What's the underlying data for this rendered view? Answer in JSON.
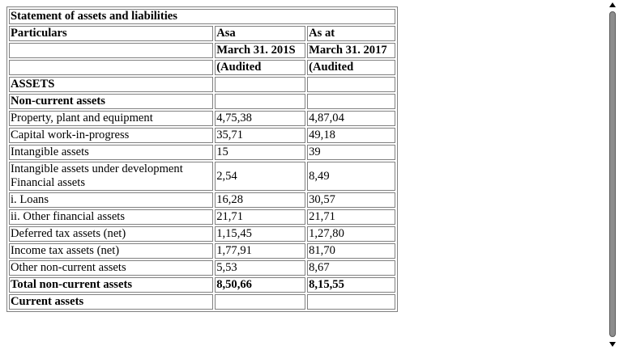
{
  "document": {
    "title": "Statement of assets and liabilities",
    "header_rows": [
      [
        "Particulars",
        "Asa",
        "As at"
      ],
      [
        "",
        "March 31. 201S",
        "March 31. 2017"
      ],
      [
        "",
        "(Audited",
        "(Audited"
      ]
    ],
    "rows": [
      {
        "label": "ASSETS",
        "v1": "",
        "v2": "",
        "bold": true
      },
      {
        "label": "Non-current assets",
        "v1": "",
        "v2": "",
        "bold": true
      },
      {
        "label": "Property, plant and equipment",
        "v1": "4,75,38",
        "v2": "4,87,04",
        "bold": false
      },
      {
        "label": "Capital work-in-progress",
        "v1": "35,71",
        "v2": "49,18",
        "bold": false
      },
      {
        "label": "Intangible assets",
        "v1": "15",
        "v2": "39",
        "bold": false
      },
      {
        "label": "Intangible assets under development Financial assets",
        "v1": "2,54",
        "v2": "8,49",
        "bold": false
      },
      {
        "label": "i. Loans",
        "v1": "16,28",
        "v2": "30,57",
        "bold": false
      },
      {
        "label": "ii. Other financial assets",
        "v1": "21,71",
        "v2": "21,71",
        "bold": false
      },
      {
        "label": "Deferred tax assets (net)",
        "v1": "1,15,45",
        "v2": "1,27,80",
        "bold": false
      },
      {
        "label": "Income tax assets (net)",
        "v1": "1,77,91",
        "v2": "81,70",
        "bold": false
      },
      {
        "label": "Other non-current assets",
        "v1": "5,53",
        "v2": "8,67",
        "bold": false
      },
      {
        "label": "Total non-current assets",
        "v1": "8,50,66",
        "v2": "8,15,55",
        "bold": true
      },
      {
        "label": "Current assets",
        "v1": "",
        "v2": "",
        "bold": true
      }
    ]
  }
}
